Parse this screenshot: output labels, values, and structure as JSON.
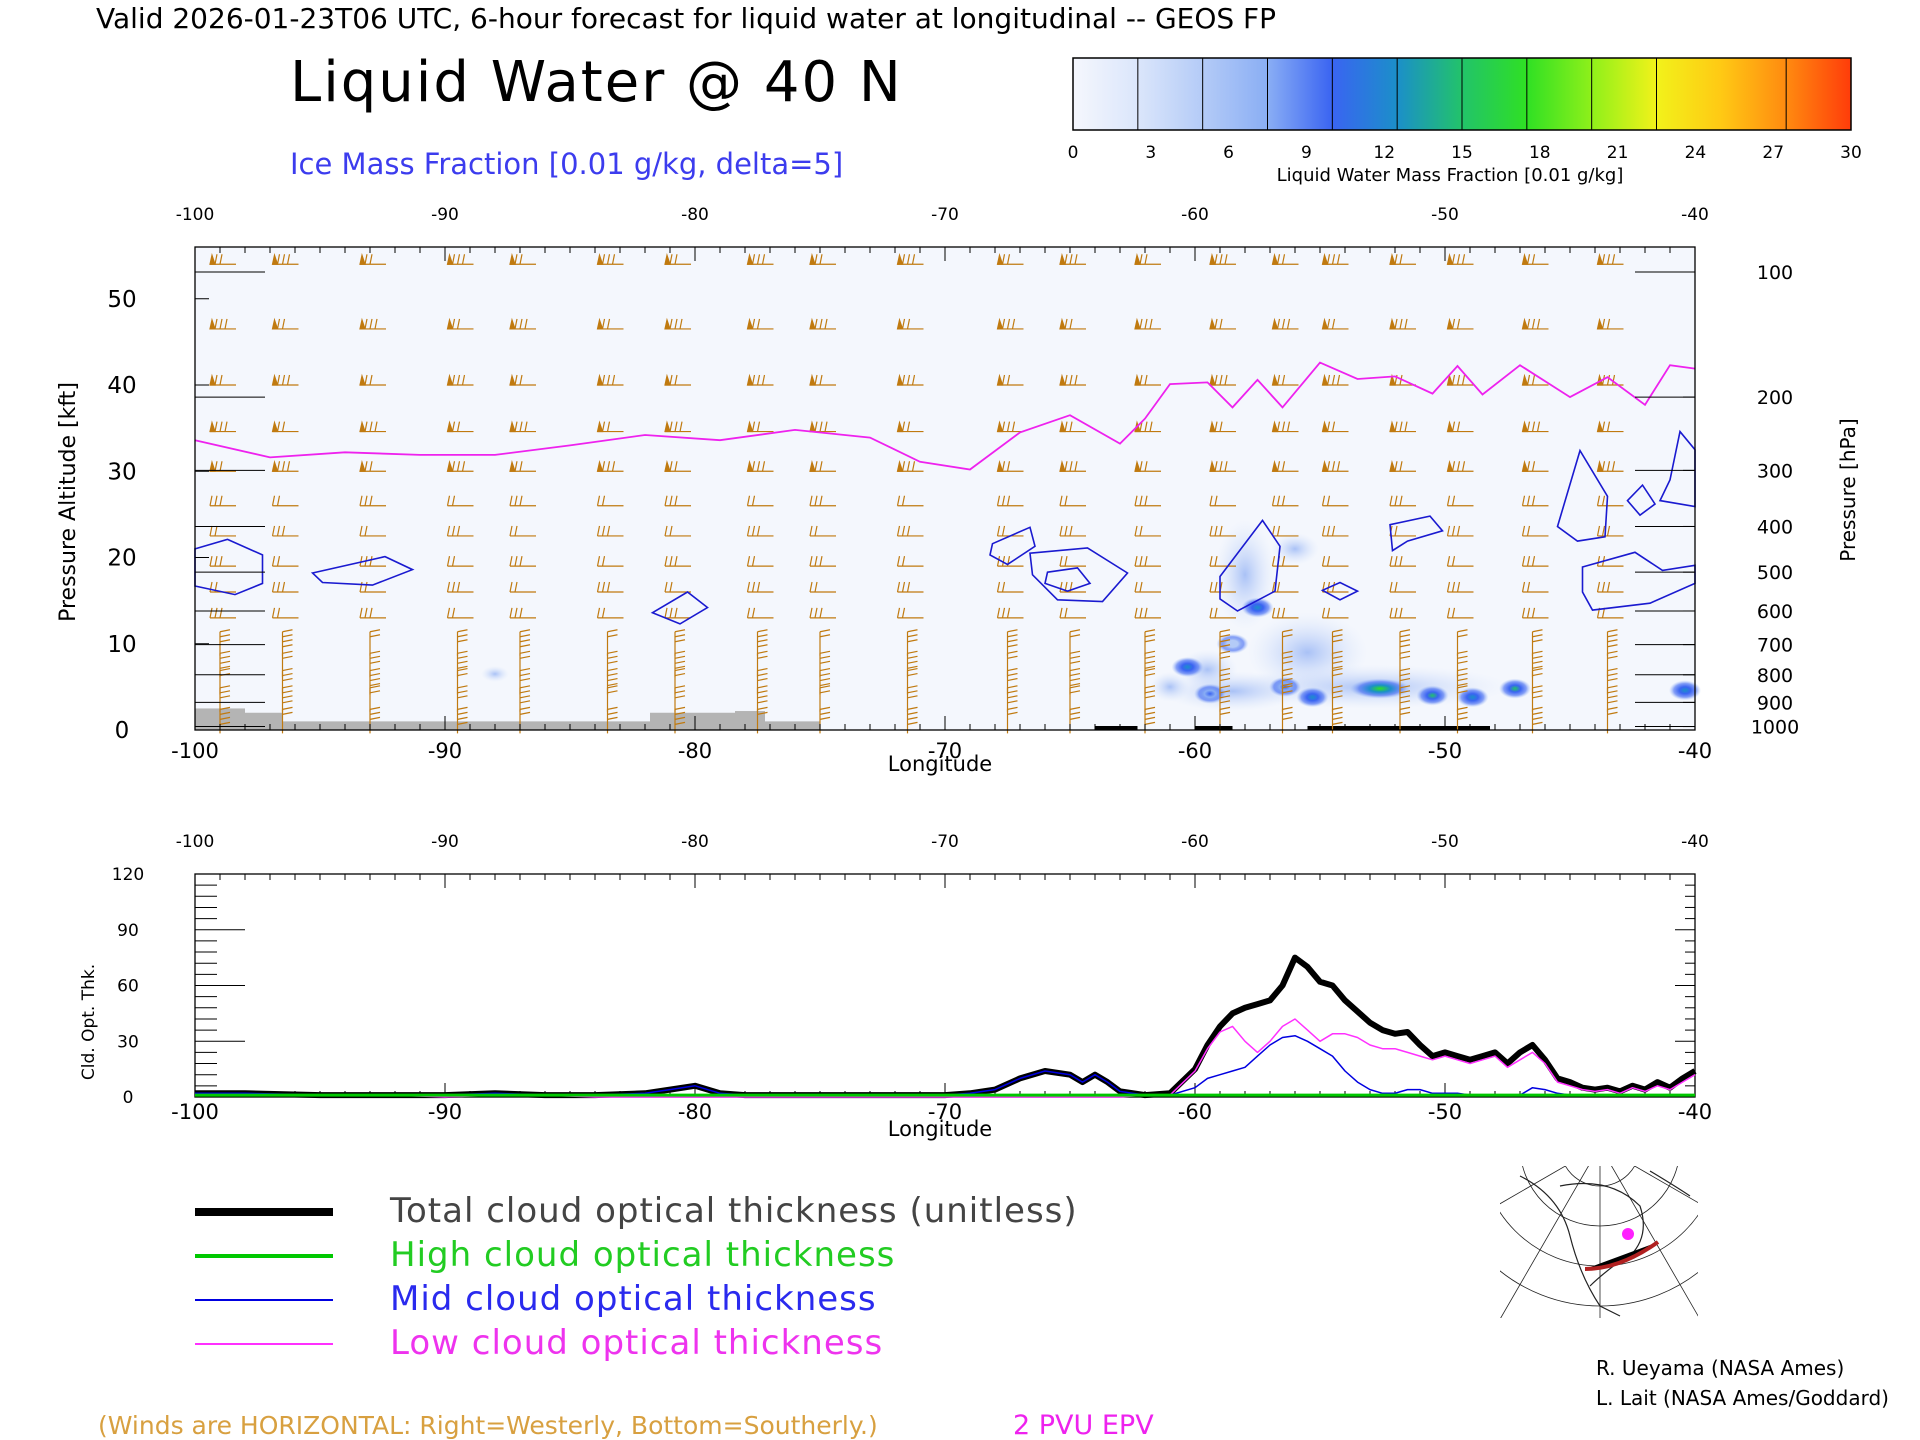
{
  "header": {
    "valid_line": "Valid 2026-01-23T06 UTC, 6-hour forecast for liquid water at longitudinal -- GEOS FP",
    "main_title": "Liquid Water @ 40 N",
    "subtitle": "Ice Mass Fraction [0.01 g/kg, delta=5]"
  },
  "colorbar": {
    "ticks": [
      "0",
      "3",
      "6",
      "9",
      "12",
      "15",
      "18",
      "21",
      "24",
      "27",
      "30"
    ],
    "label": "Liquid Water Mass Fraction [0.01 g/kg]",
    "colors": [
      "#f5f7fd",
      "#dbe6fb",
      "#b4cbf7",
      "#8aaef4",
      "#3a64f2",
      "#1b8fc9",
      "#22c36a",
      "#2fe024",
      "#8ff01a",
      "#f2f21a",
      "#ffc914",
      "#ff8a10",
      "#ff3c0a"
    ]
  },
  "chart_data": [
    {
      "type": "heatmap",
      "title": "Liquid Water @ 40 N",
      "xlabel": "Longitude",
      "ylabel": "Pressure Altitude [kft]",
      "ylabel_right": "Pressure [hPa]",
      "xlim": [
        -100,
        -40
      ],
      "ylim": [
        0,
        56
      ],
      "x_ticks": [
        "-100",
        "-90",
        "-80",
        "-70",
        "-60",
        "-50",
        "-40"
      ],
      "y_ticks": [
        "0",
        "10",
        "20",
        "30",
        "40",
        "50"
      ],
      "right_ticks": [
        {
          "label": "100",
          "kft": 53.1
        },
        {
          "label": "200",
          "kft": 38.6
        },
        {
          "label": "300",
          "kft": 30.1
        },
        {
          "label": "400",
          "kft": 23.6
        },
        {
          "label": "500",
          "kft": 18.3
        },
        {
          "label": "600",
          "kft": 13.8
        },
        {
          "label": "700",
          "kft": 9.9
        },
        {
          "label": "800",
          "kft": 6.4
        },
        {
          "label": "900",
          "kft": 3.2
        },
        {
          "label": "1000",
          "kft": 0.4
        }
      ],
      "liquid_water_cells": [
        {
          "lon": -57.5,
          "kft": 14.2,
          "value": 13
        },
        {
          "lon": -60.3,
          "kft": 7.3,
          "value": 12
        },
        {
          "lon": -56.4,
          "kft": 5.0,
          "value": 11
        },
        {
          "lon": -55.3,
          "kft": 3.8,
          "value": 13
        },
        {
          "lon": -52.6,
          "kft": 4.8,
          "value": 18
        },
        {
          "lon": -50.5,
          "kft": 4.0,
          "value": 14
        },
        {
          "lon": -48.9,
          "kft": 3.8,
          "value": 12
        },
        {
          "lon": -47.2,
          "kft": 4.8,
          "value": 14
        },
        {
          "lon": -40.4,
          "kft": 4.6,
          "value": 13
        },
        {
          "lon": -58.5,
          "kft": 10.0,
          "value": 6
        },
        {
          "lon": -59.4,
          "kft": 4.2,
          "value": 9
        }
      ],
      "epv_2pvu_kft": [
        {
          "lon": -100,
          "kft": 33.6
        },
        {
          "lon": -97,
          "kft": 31.6
        },
        {
          "lon": -94,
          "kft": 32.2
        },
        {
          "lon": -91,
          "kft": 31.9
        },
        {
          "lon": -88,
          "kft": 31.9
        },
        {
          "lon": -85,
          "kft": 33.0
        },
        {
          "lon": -82,
          "kft": 34.2
        },
        {
          "lon": -79,
          "kft": 33.6
        },
        {
          "lon": -76,
          "kft": 34.8
        },
        {
          "lon": -73,
          "kft": 33.9
        },
        {
          "lon": -71,
          "kft": 31.1
        },
        {
          "lon": -69,
          "kft": 30.2
        },
        {
          "lon": -67,
          "kft": 34.5
        },
        {
          "lon": -65,
          "kft": 36.5
        },
        {
          "lon": -63,
          "kft": 33.2
        },
        {
          "lon": -62,
          "kft": 36.1
        },
        {
          "lon": -61,
          "kft": 40.1
        },
        {
          "lon": -59.5,
          "kft": 40.3
        },
        {
          "lon": -58.5,
          "kft": 37.4
        },
        {
          "lon": -57.5,
          "kft": 40.6
        },
        {
          "lon": -56.5,
          "kft": 37.4
        },
        {
          "lon": -55,
          "kft": 42.6
        },
        {
          "lon": -53.5,
          "kft": 40.7
        },
        {
          "lon": -52,
          "kft": 41.0
        },
        {
          "lon": -50.5,
          "kft": 39.0
        },
        {
          "lon": -49.5,
          "kft": 42.2
        },
        {
          "lon": -48.5,
          "kft": 38.9
        },
        {
          "lon": -47,
          "kft": 42.3
        },
        {
          "lon": -45,
          "kft": 38.6
        },
        {
          "lon": -43.5,
          "kft": 40.9
        },
        {
          "lon": -42,
          "kft": 37.7
        },
        {
          "lon": -41,
          "kft": 42.3
        },
        {
          "lon": -40,
          "kft": 41.9
        }
      ],
      "ice_contours": [
        [
          {
            "lon": -100,
            "kft": 21.0
          },
          {
            "lon": -98.7,
            "kft": 22.1
          },
          {
            "lon": -97.3,
            "kft": 20.3
          },
          {
            "lon": -97.3,
            "kft": 17.0
          },
          {
            "lon": -98.4,
            "kft": 15.7
          },
          {
            "lon": -100,
            "kft": 16.7
          }
        ],
        [
          {
            "lon": -95.3,
            "kft": 18.2
          },
          {
            "lon": -92.4,
            "kft": 20.1
          },
          {
            "lon": -91.3,
            "kft": 18.6
          },
          {
            "lon": -92.9,
            "kft": 16.8
          },
          {
            "lon": -94.9,
            "kft": 17.1
          }
        ],
        [
          {
            "lon": -81.7,
            "kft": 13.6
          },
          {
            "lon": -80.3,
            "kft": 16.0
          },
          {
            "lon": -79.5,
            "kft": 14.2
          },
          {
            "lon": -80.6,
            "kft": 12.3
          }
        ],
        [
          {
            "lon": -68.1,
            "kft": 21.6
          },
          {
            "lon": -66.6,
            "kft": 23.5
          },
          {
            "lon": -66.4,
            "kft": 21.3
          },
          {
            "lon": -67.5,
            "kft": 19.2
          },
          {
            "lon": -68.2,
            "kft": 20.3
          }
        ],
        [
          {
            "lon": -66.6,
            "kft": 20.5
          },
          {
            "lon": -64.3,
            "kft": 21.1
          },
          {
            "lon": -62.7,
            "kft": 18.2
          },
          {
            "lon": -63.7,
            "kft": 14.9
          },
          {
            "lon": -65.5,
            "kft": 15.1
          },
          {
            "lon": -66.5,
            "kft": 18.0
          }
        ],
        [
          {
            "lon": -65.9,
            "kft": 18.3
          },
          {
            "lon": -64.7,
            "kft": 18.8
          },
          {
            "lon": -64.2,
            "kft": 17.0
          },
          {
            "lon": -65.1,
            "kft": 16.1
          },
          {
            "lon": -66.0,
            "kft": 17.0
          }
        ],
        [
          {
            "lon": -59.0,
            "kft": 17.8
          },
          {
            "lon": -57.3,
            "kft": 24.3
          },
          {
            "lon": -56.6,
            "kft": 21.3
          },
          {
            "lon": -56.8,
            "kft": 16.1
          },
          {
            "lon": -58.3,
            "kft": 13.8
          },
          {
            "lon": -59.0,
            "kft": 15.2
          }
        ],
        [
          {
            "lon": -54.9,
            "kft": 16.2
          },
          {
            "lon": -54.2,
            "kft": 17.1
          },
          {
            "lon": -53.5,
            "kft": 16.1
          },
          {
            "lon": -54.2,
            "kft": 15.1
          }
        ],
        [
          {
            "lon": -52.2,
            "kft": 23.8
          },
          {
            "lon": -50.6,
            "kft": 24.8
          },
          {
            "lon": -50.1,
            "kft": 23.1
          },
          {
            "lon": -51.5,
            "kft": 21.9
          },
          {
            "lon": -52.1,
            "kft": 20.8
          }
        ],
        [
          {
            "lon": -45.5,
            "kft": 23.6
          },
          {
            "lon": -44.6,
            "kft": 32.4
          },
          {
            "lon": -43.5,
            "kft": 27.1
          },
          {
            "lon": -43.6,
            "kft": 22.4
          },
          {
            "lon": -44.7,
            "kft": 21.9
          }
        ],
        [
          {
            "lon": -44.5,
            "kft": 18.9
          },
          {
            "lon": -42.4,
            "kft": 20.6
          },
          {
            "lon": -41.3,
            "kft": 18.5
          },
          {
            "lon": -40.0,
            "kft": 19.1
          },
          {
            "lon": -40.0,
            "kft": 17.0
          },
          {
            "lon": -41.8,
            "kft": 14.7
          },
          {
            "lon": -44.1,
            "kft": 13.9
          },
          {
            "lon": -44.5,
            "kft": 16.0
          }
        ],
        [
          {
            "lon": -41.0,
            "kft": 29.0
          },
          {
            "lon": -40.6,
            "kft": 34.6
          },
          {
            "lon": -40.0,
            "kft": 32.5
          },
          {
            "lon": -40.0,
            "kft": 25.9
          },
          {
            "lon": -41.4,
            "kft": 26.6
          }
        ],
        [
          {
            "lon": -42.7,
            "kft": 26.6
          },
          {
            "lon": -42.1,
            "kft": 28.4
          },
          {
            "lon": -41.6,
            "kft": 26.2
          },
          {
            "lon": -42.2,
            "kft": 24.9
          }
        ]
      ],
      "terrain_kft": [
        {
          "lon": -100,
          "kft": 2.5
        },
        {
          "lon": -98,
          "kft": 2.0
        },
        {
          "lon": -96.5,
          "kft": 1.0
        },
        {
          "lon": -91.3,
          "kft": 1.0
        },
        {
          "lon": -89.5,
          "kft": 1.0
        },
        {
          "lon": -82,
          "kft": 1.0
        },
        {
          "lon": -81.8,
          "kft": 2.0
        },
        {
          "lon": -78.4,
          "kft": 2.2
        },
        {
          "lon": -77.2,
          "kft": 1.0
        },
        {
          "lon": -75,
          "kft": 1.0
        }
      ],
      "wind_barb_longitudes": [
        -99,
        -96.5,
        -93,
        -89.5,
        -87,
        -83.5,
        -80.8,
        -77.5,
        -75,
        -71.5,
        -67.5,
        -65,
        -62,
        -59,
        -56.5,
        -54.5,
        -51.8,
        -49.5,
        -46.5,
        -43.5
      ],
      "wind_barb_levels_kft": [
        54,
        46.5,
        40,
        34.6,
        30,
        26,
        22.5,
        19,
        16,
        13,
        10,
        7.5,
        5.5,
        3.5,
        1
      ],
      "winds_note": "(Winds are HORIZONTAL: Right=Westerly, Bottom=Southerly.)",
      "epv_label": "2 PVU EPV"
    },
    {
      "type": "line",
      "xlabel": "Longitude",
      "ylabel": "Cld. Opt. Thk.",
      "xlim": [
        -100,
        -40
      ],
      "ylim": [
        0,
        120
      ],
      "x_ticks": [
        "-100",
        "-90",
        "-80",
        "-70",
        "-60",
        "-50",
        "-40"
      ],
      "y_ticks": [
        "0",
        "30",
        "60",
        "90",
        "120"
      ],
      "x": [
        -100,
        -98,
        -95,
        -92,
        -90,
        -88,
        -86,
        -84,
        -82,
        -81,
        -80,
        -79,
        -78,
        -75,
        -72,
        -70,
        -69,
        -68,
        -67,
        -66,
        -65,
        -64.5,
        -64,
        -63.5,
        -63,
        -62,
        -61,
        -60,
        -59.5,
        -59,
        -58.5,
        -58,
        -57.5,
        -57,
        -56.5,
        -56,
        -55.5,
        -55,
        -54.5,
        -54,
        -53.5,
        -53,
        -52.5,
        -52,
        -51.5,
        -51,
        -50.5,
        -50,
        -49.5,
        -49,
        -48.5,
        -48,
        -47.5,
        -47,
        -46.5,
        -46,
        -45.5,
        -45,
        -44.5,
        -44,
        -43.5,
        -43,
        -42.5,
        -42,
        -41.5,
        -41,
        -40.5,
        -40
      ],
      "series": [
        {
          "name": "Total cloud optical thickness (unitless)",
          "color": "#000000",
          "values": [
            2,
            2,
            1,
            1,
            1,
            2,
            1,
            1,
            2,
            4,
            6,
            2,
            1,
            1,
            1,
            1,
            2,
            4,
            10,
            14,
            12,
            8,
            12,
            8,
            3,
            1,
            2,
            15,
            28,
            38,
            45,
            48,
            50,
            52,
            60,
            75,
            70,
            62,
            60,
            52,
            46,
            40,
            36,
            34,
            35,
            28,
            22,
            24,
            22,
            20,
            22,
            24,
            18,
            24,
            28,
            20,
            10,
            8,
            5,
            4,
            5,
            3,
            6,
            4,
            8,
            5,
            10,
            14
          ]
        },
        {
          "name": "High cloud optical thickness",
          "color": "#00c800",
          "values": [
            1,
            1,
            1,
            1,
            1,
            1,
            1,
            1,
            1,
            1,
            1,
            1,
            1,
            1,
            1,
            1,
            1,
            1,
            1,
            1,
            1,
            1,
            1,
            1,
            1,
            1,
            1,
            1,
            1,
            1,
            1,
            1,
            1,
            1,
            1,
            1,
            1,
            1,
            1,
            1,
            1,
            1,
            1,
            1,
            1,
            1,
            1,
            1,
            1,
            1,
            1,
            1,
            1,
            1,
            1,
            1,
            1,
            1,
            1,
            1,
            1,
            1,
            1,
            1,
            1,
            1,
            1,
            1
          ]
        },
        {
          "name": "Mid cloud optical thickness",
          "color": "#0000e0",
          "values": [
            2,
            2,
            1,
            1,
            1,
            2,
            1,
            1,
            2,
            4,
            6,
            2,
            1,
            1,
            1,
            1,
            2,
            4,
            10,
            14,
            12,
            8,
            12,
            8,
            3,
            1,
            1,
            5,
            10,
            12,
            14,
            16,
            22,
            28,
            32,
            33,
            30,
            26,
            22,
            14,
            8,
            4,
            2,
            2,
            4,
            4,
            2,
            2,
            2,
            1,
            1,
            1,
            1,
            1,
            5,
            4,
            2,
            1,
            1,
            1,
            1,
            1,
            1,
            1,
            1,
            1,
            1,
            1
          ]
        },
        {
          "name": "Low cloud optical thickness",
          "color": "#ff30ff",
          "values": [
            1,
            1,
            1,
            1,
            0,
            1,
            1,
            0,
            0,
            0,
            0,
            0,
            0,
            0,
            0,
            0,
            0,
            0,
            0,
            0,
            0,
            0,
            0,
            0,
            0,
            1,
            1,
            14,
            26,
            35,
            38,
            30,
            24,
            30,
            38,
            42,
            36,
            30,
            34,
            34,
            32,
            28,
            26,
            26,
            24,
            22,
            20,
            22,
            20,
            18,
            20,
            22,
            16,
            20,
            24,
            18,
            8,
            6,
            4,
            3,
            4,
            2,
            5,
            3,
            6,
            4,
            8,
            12
          ]
        }
      ]
    }
  ],
  "legend": {
    "items": [
      {
        "label": "Total cloud optical thickness (unitless)",
        "color": "#000000",
        "text_color": "#444444"
      },
      {
        "label": "High cloud optical thickness",
        "color": "#00c800",
        "text_color": "#22cc22"
      },
      {
        "label": "Mid cloud optical thickness",
        "color": "#0000e0",
        "text_color": "#2a2aee"
      },
      {
        "label": "Low cloud optical thickness",
        "color": "#ff30ff",
        "text_color": "#ee33ee"
      }
    ]
  },
  "credits": {
    "line1": "R. Ueyama (NASA Ames)",
    "line2": "L. Lait (NASA Ames/Goddard)"
  },
  "footer": {
    "winds_note": "(Winds are HORIZONTAL: Right=Westerly, Bottom=Southerly.)",
    "epv_label": "2 PVU EPV"
  },
  "colors": {
    "ice_contour": "#1a1ad0",
    "epv_line": "#ee22ee",
    "barb": "#c07a10",
    "terrain": "#b4b4b4",
    "subtitle_text": "#3c3cee",
    "winds_note_text": "#d8a040",
    "epv_text": "#ee22ee",
    "map_track": "#b02020",
    "map_point": "#ff20ff"
  }
}
